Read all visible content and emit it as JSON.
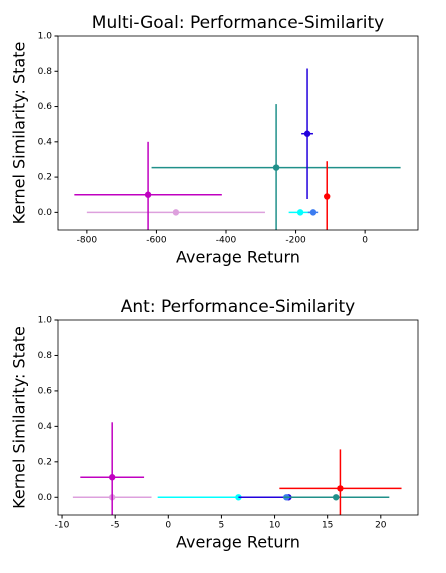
{
  "chart_data": [
    {
      "type": "scatter",
      "title": "Multi-Goal: Performance-Similarity",
      "x_label": "Average Return",
      "y_label": "Kernel Similarity: State",
      "xlim": [
        -883,
        152
      ],
      "ylim": [
        -0.1,
        1.0
      ],
      "xticks": [
        -800,
        -600,
        -400,
        -200,
        0
      ],
      "yticks": [
        {
          "value": 0,
          "label": "0.0"
        },
        0.2,
        0.4,
        0.6,
        0.8,
        {
          "value": 1,
          "label": "1.0"
        }
      ],
      "series": [
        {
          "color": "#dda0dd",
          "x": -544,
          "y": 0,
          "xerr": 256,
          "yerr": 0
        },
        {
          "color": "#c000c0",
          "x": -624,
          "y": 0.1,
          "xerr": 212,
          "yerr": 0.3
        },
        {
          "color": "#20908a",
          "x": -256,
          "y": 0.254,
          "xerr": 358,
          "yerr": 0.36
        },
        {
          "color": "#00ffff",
          "x": -187,
          "y": 0,
          "xerr": 33,
          "yerr": 0
        },
        {
          "color": "#3c7cf0",
          "x": -150,
          "y": 0,
          "xerr": 15,
          "yerr": 0
        },
        {
          "color": "#2200dd",
          "x": -167,
          "y": 0.446,
          "xerr": 17,
          "yerr": 0.37
        },
        {
          "color": "#ff0000",
          "x": -109,
          "y": 0.09,
          "xerr": 0,
          "yerr": 0.2
        }
      ]
    },
    {
      "type": "scatter",
      "title": "Ant: Performance-Similarity",
      "x_label": "Average Return",
      "y_label": "Kernel Similarity: State",
      "xlim": [
        -10.38,
        23.5
      ],
      "ylim": [
        -0.1,
        1.0
      ],
      "xticks": [
        -10,
        -5,
        0,
        5,
        10,
        15,
        20
      ],
      "yticks": [
        {
          "value": 0,
          "label": "0.0"
        },
        0.2,
        0.4,
        0.6,
        0.8,
        {
          "value": 1,
          "label": "1.0"
        }
      ],
      "series": [
        {
          "color": "#dda0dd",
          "x": -5.28,
          "y": 0,
          "xerr": 3.7,
          "yerr": 0
        },
        {
          "color": "#c000c0",
          "x": -5.28,
          "y": 0.113,
          "xerr": 3.0,
          "yerr": 0.31
        },
        {
          "color": "#00ffff",
          "x": 6.6,
          "y": 0,
          "xerr": 7.6,
          "yerr": 0
        },
        {
          "color": "#2200dd",
          "x": 11.3,
          "y": 0,
          "xerr": 4.7,
          "yerr": 0
        },
        {
          "color": "#3c7cf0",
          "x": 11.1,
          "y": 0,
          "xerr": 0,
          "yerr": 0
        },
        {
          "color": "#20908a",
          "x": 15.8,
          "y": 0,
          "xerr": 5.0,
          "yerr": 0
        },
        {
          "color": "#ff0000",
          "x": 16.2,
          "y": 0.05,
          "xerr": 5.75,
          "yerr": 0.22
        }
      ]
    }
  ]
}
